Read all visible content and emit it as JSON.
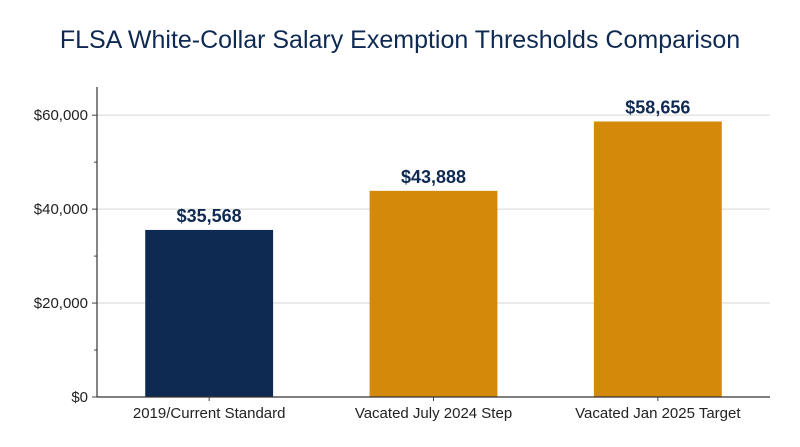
{
  "chart_data": {
    "type": "bar",
    "title": "FLSA White-Collar Salary Exemption Thresholds Comparison",
    "xlabel": "",
    "ylabel": "",
    "categories": [
      "2019/Current Standard",
      "Vacated July 2024 Step",
      "Vacated Jan 2025 Target"
    ],
    "values": [
      35568,
      43888,
      58656
    ],
    "data_labels": [
      "$35,568",
      "$43,888",
      "$58,656"
    ],
    "bar_colors": [
      "#0f2a52",
      "#d4890a",
      "#d4890a"
    ],
    "ylim": [
      0,
      66000
    ],
    "yticks": [
      0,
      20000,
      40000,
      60000
    ],
    "ytick_labels": [
      "$0",
      "$20,000",
      "$40,000",
      "$60,000"
    ],
    "minor_ytick_step": 10000,
    "grid": true,
    "legend": "none"
  }
}
